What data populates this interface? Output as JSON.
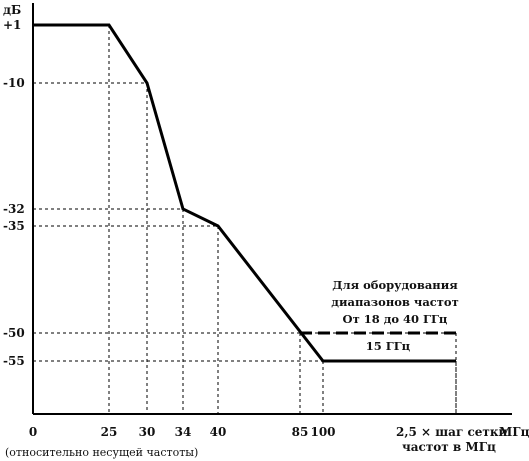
{
  "chart_data": {
    "type": "line",
    "y_unit": "дБ",
    "x_unit": "МГц",
    "x_origin_note": "(относительно несущей частоты)",
    "x_ticks": [
      "0",
      "25",
      "30",
      "34",
      "40",
      "85",
      "100"
    ],
    "x_last_tick_lines": [
      "2,5 × шаг сетки",
      "частот в МГц"
    ],
    "y_ticks": [
      "+1",
      "-10",
      "-32",
      "-35",
      "-50",
      "-55"
    ],
    "series": [
      {
        "style": "solid",
        "points": [
          {
            "x": "0",
            "y": 1
          },
          {
            "x": "25",
            "y": 1
          },
          {
            "x": "30",
            "y": -10
          },
          {
            "x": "34",
            "y": -32
          },
          {
            "x": "40",
            "y": -35
          },
          {
            "x": "100",
            "y": -55
          },
          {
            "x": "2,5 × шаг сетки частот в МГц",
            "y": -55
          }
        ]
      },
      {
        "style": "dashed",
        "points": [
          {
            "x": "85",
            "y": -50
          },
          {
            "x": "2,5 × шаг сетки частот в МГц",
            "y": -50
          }
        ]
      }
    ],
    "annotations": {
      "dashed_label_lines": [
        "Для оборудования",
        "диапазонов частот",
        "От 18 до 40 ГГц"
      ],
      "solid_label": "15 ГГц"
    },
    "guide_lines": "dashed"
  },
  "colors": {
    "line": "#000000",
    "text": "#111111",
    "background": "#ffffff"
  }
}
